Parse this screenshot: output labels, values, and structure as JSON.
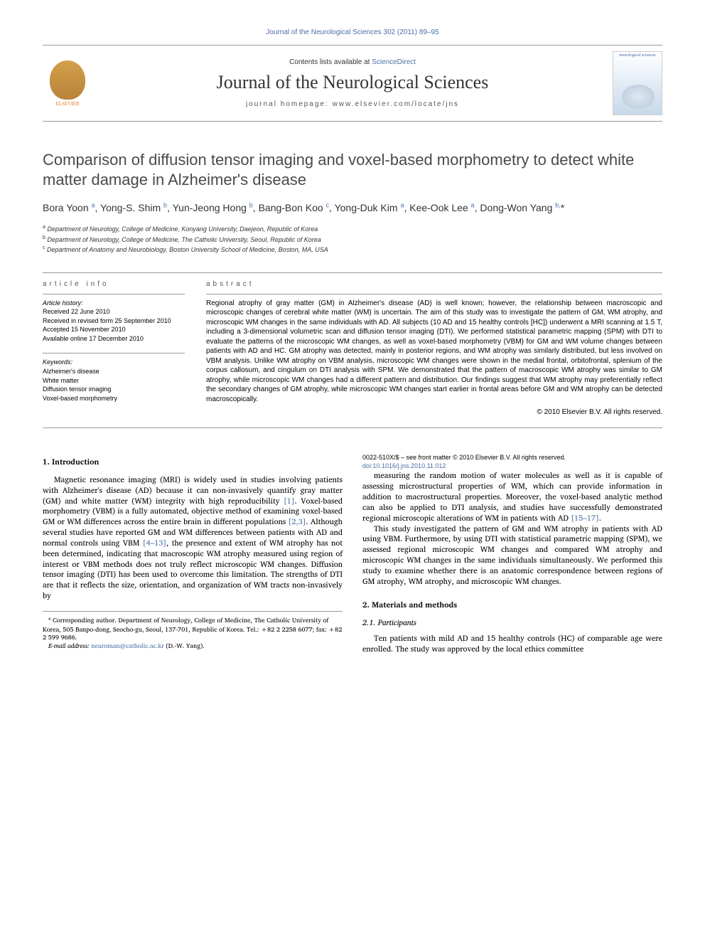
{
  "top_citation": "Journal of the Neurological Sciences 302 (2011) 89–95",
  "header": {
    "contents_prefix": "Contents lists available at ",
    "contents_link": "ScienceDirect",
    "journal_name": "Journal of the Neurological Sciences",
    "homepage_prefix": "journal homepage: ",
    "homepage_url": "www.elsevier.com/locate/jns",
    "elsevier_label": "ELSEVIER",
    "cover_label": "neurological sciences"
  },
  "title": "Comparison of diffusion tensor imaging and voxel-based morphometry to detect white matter damage in Alzheimer's disease",
  "authors_html": "Bora Yoon <sup>a</sup>, Yong-S. Shim <sup>b</sup>, Yun-Jeong Hong <sup>b</sup>, Bang-Bon Koo <sup>c</sup>, Yong-Duk Kim <sup>a</sup>, Kee-Ook Lee <sup>a</sup>, Dong-Won Yang <sup>b,</sup><span class='asterisk'>*</span>",
  "affiliations": {
    "a": "Department of Neurology, College of Medicine, Konyang University, Daejeon, Republic of Korea",
    "b": "Department of Neurology, College of Medicine, The Catholic University, Seoul, Republic of Korea",
    "c": "Department of Anatomy and Neurobiology, Boston University School of Medicine, Boston, MA, USA"
  },
  "article_info": {
    "heading": "article info",
    "history_label": "Article history:",
    "received": "Received 22 June 2010",
    "revised": "Received in revised form 25 September 2010",
    "accepted": "Accepted 15 November 2010",
    "online": "Available online 17 December 2010",
    "keywords_label": "Keywords:",
    "keywords": [
      "Alzheimer's disease",
      "White matter",
      "Diffusion tensor imaging",
      "Voxel-based morphometry"
    ]
  },
  "abstract": {
    "heading": "abstract",
    "text": "Regional atrophy of gray matter (GM) in Alzheimer's disease (AD) is well known; however, the relationship between macroscopic and microscopic changes of cerebral white matter (WM) is uncertain. The aim of this study was to investigate the pattern of GM, WM atrophy, and microscopic WM changes in the same individuals with AD. All subjects (10 AD and 15 healthy controls [HC]) underwent a MRI scanning at 1.5 T, including a 3-dimensional volumetric scan and diffusion tensor imaging (DTI). We performed statistical parametric mapping (SPM) with DTI to evaluate the patterns of the microscopic WM changes, as well as voxel-based morphometry (VBM) for GM and WM volume changes between patients with AD and HC. GM atrophy was detected, mainly in posterior regions, and WM atrophy was similarly distributed, but less involved on VBM analysis. Unlike WM atrophy on VBM analysis, microscopic WM changes were shown in the medial frontal, orbitofrontal, splenium of the corpus callosum, and cingulum on DTI analysis with SPM. We demonstrated that the pattern of macroscopic WM atrophy was similar to GM atrophy, while microscopic WM changes had a different pattern and distribution. Our findings suggest that WM atrophy may preferentially reflect the secondary changes of GM atrophy, while microscopic WM changes start earlier in frontal areas before GM and WM atrophy can be detected macroscopically.",
    "copyright": "© 2010 Elsevier B.V. All rights reserved."
  },
  "sections": {
    "intro_heading": "1. Introduction",
    "intro_p1": "Magnetic resonance imaging (MRI) is widely used in studies involving patients with Alzheimer's disease (AD) because it can non-invasively quantify gray matter (GM) and white matter (WM) integrity with high reproducibility [1]. Voxel-based morphometry (VBM) is a fully automated, objective method of examining voxel-based GM or WM differences across the entire brain in different populations [2,3]. Although several studies have reported GM and WM differences between patients with AD and normal controls using VBM [4–13], the presence and extent of WM atrophy has not been determined, indicating that macroscopic WM atrophy measured using region of interest or VBM methods does not truly reflect microscopic WM changes. Diffusion tensor imaging (DTI) has been used to overcome this limitation. The strengths of DTI are that it reflects the size, orientation, and organization of WM tracts non-invasively by",
    "intro_p2": "measuring the random motion of water molecules as well as it is capable of assessing microstructural properties of WM, which can provide information in addition to macrostructural properties. Moreover, the voxel-based analytic method can also be applied to DTI analysis, and studies have successfully demonstrated regional microscopic alterations of WM in patients with AD [15–17].",
    "intro_p3": "This study investigated the pattern of GM and WM atrophy in patients with AD using VBM. Furthermore, by using DTI with statistical parametric mapping (SPM), we assessed regional microscopic WM changes and compared WM atrophy and microscopic WM changes in the same individuals simultaneously. We performed this study to examine whether there is an anatomic correspondence between regions of GM atrophy, WM atrophy, and microscopic WM changes.",
    "methods_heading": "2. Materials and methods",
    "participants_heading": "2.1. Participants",
    "participants_p1": "Ten patients with mild AD and 15 healthy controls (HC) of comparable age were enrolled. The study was approved by the local ethics committee"
  },
  "footnote": {
    "corresponding": "Corresponding author. Department of Neurology, College of Medicine, The Catholic University of Korea, 505 Banpo-dong, Seocho-gu, Seoul, 137-701, Republic of Korea. Tel.: +82 2 2258 6077; fax: +82 2 599 9686.",
    "email_label": "E-mail address:",
    "email": "neuroman@catholic.ac.kr",
    "email_name": "(D.-W. Yang)."
  },
  "bottom": {
    "issn": "0022-510X/$ – see front matter © 2010 Elsevier B.V. All rights reserved.",
    "doi": "doi:10.1016/j.jns.2010.11.012"
  },
  "refs": {
    "r1": "[1]",
    "r23": "[2,3]",
    "r413": "[4–13]",
    "r1517": "[15–17]"
  }
}
